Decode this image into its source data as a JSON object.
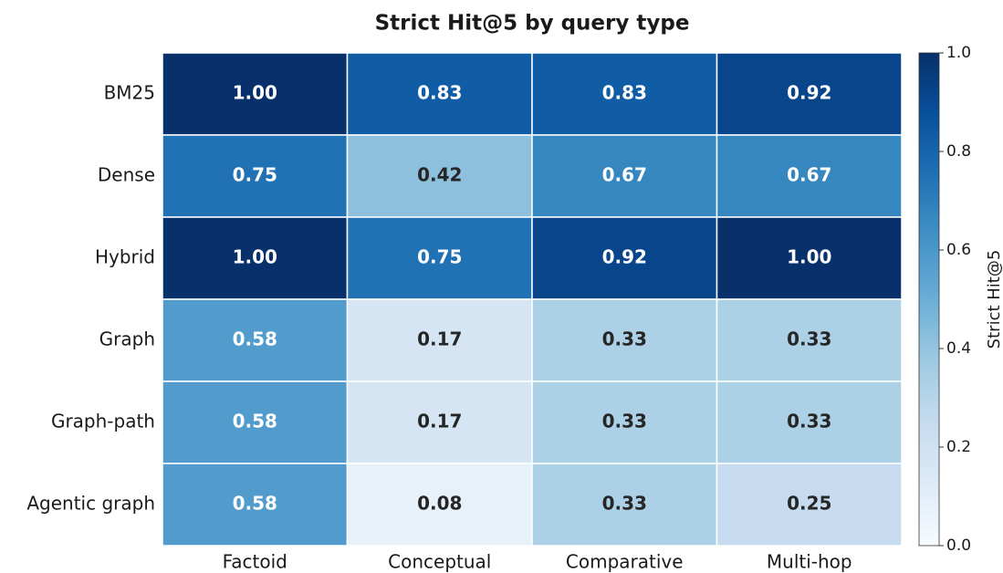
{
  "chart_data": {
    "type": "heatmap",
    "title": "Strict Hit@5 by query type",
    "categories": [
      "Factoid",
      "Conceptual",
      "Comparative",
      "Multi-hop"
    ],
    "rows": [
      "BM25",
      "Dense",
      "Hybrid",
      "Graph",
      "Graph-path",
      "Agentic graph"
    ],
    "values": [
      [
        1.0,
        0.83,
        0.83,
        0.92
      ],
      [
        0.75,
        0.42,
        0.67,
        0.67
      ],
      [
        1.0,
        0.75,
        0.92,
        1.0
      ],
      [
        0.58,
        0.17,
        0.33,
        0.33
      ],
      [
        0.58,
        0.17,
        0.33,
        0.33
      ],
      [
        0.58,
        0.08,
        0.33,
        0.25
      ]
    ],
    "value_labels": [
      [
        "1.00",
        "0.83",
        "0.83",
        "0.92"
      ],
      [
        "0.75",
        "0.42",
        "0.67",
        "0.67"
      ],
      [
        "1.00",
        "0.75",
        "0.92",
        "1.00"
      ],
      [
        "0.58",
        "0.17",
        "0.33",
        "0.33"
      ],
      [
        "0.58",
        "0.17",
        "0.33",
        "0.33"
      ],
      [
        "0.58",
        "0.08",
        "0.33",
        "0.25"
      ]
    ],
    "colormap": [
      "#f7fbff",
      "#deebf7",
      "#c6dbef",
      "#9ecae1",
      "#6baed6",
      "#4292c6",
      "#2171b5",
      "#08519c",
      "#08306b"
    ],
    "colorbar_label": "Strict Hit@5",
    "clim": [
      0,
      1
    ],
    "cticks": [
      {
        "value": 0,
        "label": "0.0"
      },
      0.2,
      0.4,
      0.6,
      0.8,
      {
        "value": 1,
        "label": "1.0"
      }
    ]
  }
}
